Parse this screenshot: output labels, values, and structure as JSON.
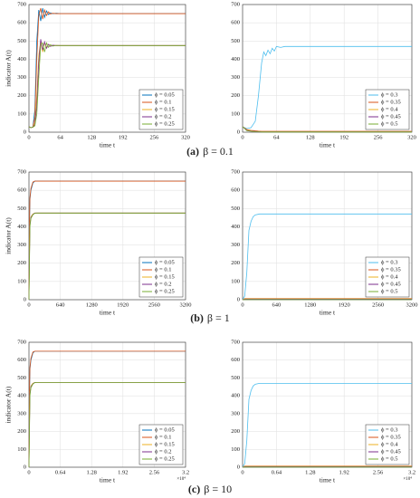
{
  "chart_data": [
    {
      "type": "line",
      "ylabel": "indicator A(t)",
      "xlabel": "time t",
      "x": [
        0,
        4,
        8,
        12,
        16,
        20,
        24,
        28,
        32,
        36,
        40,
        44,
        48,
        56,
        64,
        80,
        320
      ],
      "xlim": [
        0,
        320
      ],
      "xticks": [
        0,
        64,
        128,
        192,
        256,
        320
      ],
      "ylim": [
        0,
        700
      ],
      "yticks": [
        0,
        100,
        200,
        300,
        400,
        500,
        600,
        700
      ],
      "grid": true,
      "legend": "lower right",
      "series": [
        {
          "name": "ϕ = 0.05",
          "color": "#0072bd",
          "values": [
            30,
            25,
            30,
            120,
            500,
            670,
            610,
            680,
            630,
            665,
            645,
            655,
            650,
            652,
            650,
            650,
            650
          ]
        },
        {
          "name": "ϕ = 0.1",
          "color": "#d95319",
          "values": [
            30,
            25,
            28,
            80,
            400,
            640,
            680,
            620,
            670,
            640,
            660,
            648,
            652,
            650,
            650,
            650,
            650
          ]
        },
        {
          "name": "ϕ = 0.15",
          "color": "#edb120",
          "values": [
            30,
            25,
            28,
            50,
            200,
            420,
            500,
            440,
            490,
            465,
            480,
            472,
            476,
            475,
            475,
            475,
            475
          ]
        },
        {
          "name": "ϕ = 0.2",
          "color": "#7e2f8e",
          "values": [
            30,
            25,
            28,
            40,
            150,
            380,
            510,
            450,
            495,
            460,
            482,
            470,
            477,
            475,
            475,
            475,
            475
          ]
        },
        {
          "name": "ϕ = 0.25",
          "color": "#77ac30",
          "values": [
            30,
            25,
            28,
            35,
            100,
            300,
            480,
            490,
            440,
            490,
            465,
            480,
            472,
            476,
            475,
            475,
            475
          ]
        }
      ]
    },
    {
      "type": "line",
      "xlabel": "time t",
      "x": [
        0,
        8,
        16,
        24,
        30,
        36,
        40,
        44,
        48,
        52,
        56,
        60,
        64,
        72,
        80,
        96,
        320
      ],
      "xlim": [
        0,
        320
      ],
      "xticks": [
        0,
        64,
        128,
        192,
        256,
        320
      ],
      "ylim": [
        0,
        700
      ],
      "yticks": [
        0,
        100,
        200,
        300,
        400,
        500,
        600,
        700
      ],
      "grid": true,
      "legend": "lower right",
      "series": [
        {
          "name": "ϕ = 0.3",
          "color": "#4dbeee",
          "values": [
            30,
            20,
            25,
            60,
            200,
            380,
            440,
            420,
            450,
            430,
            460,
            445,
            470,
            465,
            470,
            470,
            470
          ]
        },
        {
          "name": "ϕ = 0.35",
          "color": "#d95319",
          "values": [
            30,
            15,
            10,
            8,
            6,
            5,
            5,
            5,
            5,
            5,
            5,
            5,
            5,
            5,
            5,
            5,
            5
          ]
        },
        {
          "name": "ϕ = 0.4",
          "color": "#edb120",
          "values": [
            30,
            12,
            8,
            5,
            4,
            3,
            3,
            3,
            3,
            3,
            3,
            3,
            3,
            3,
            3,
            3,
            3
          ]
        },
        {
          "name": "ϕ = 0.45",
          "color": "#7e2f8e",
          "values": [
            30,
            10,
            6,
            4,
            3,
            2,
            2,
            2,
            2,
            2,
            2,
            2,
            2,
            2,
            2,
            2,
            2
          ]
        },
        {
          "name": "ϕ = 0.5",
          "color": "#77ac30",
          "values": [
            30,
            8,
            5,
            3,
            2,
            1,
            1,
            1,
            1,
            1,
            1,
            1,
            1,
            1,
            1,
            1,
            1
          ]
        }
      ]
    },
    {
      "type": "line",
      "ylabel": "indicator A(t)",
      "xlabel": "time t",
      "x": [
        0,
        10,
        20,
        40,
        80,
        120,
        160,
        3200
      ],
      "xlim": [
        0,
        3200
      ],
      "xticks": [
        0,
        640,
        1280,
        1920,
        2560,
        3200
      ],
      "ylim": [
        0,
        700
      ],
      "yticks": [
        0,
        100,
        200,
        300,
        400,
        500,
        600,
        700
      ],
      "grid": true,
      "legend": "lower right",
      "series": [
        {
          "name": "ϕ = 0.05",
          "color": "#0072bd",
          "values": [
            0,
            400,
            550,
            600,
            640,
            650,
            650,
            650
          ]
        },
        {
          "name": "ϕ = 0.1",
          "color": "#d95319",
          "values": [
            0,
            420,
            560,
            610,
            645,
            650,
            650,
            650
          ]
        },
        {
          "name": "ϕ = 0.15",
          "color": "#edb120",
          "values": [
            0,
            250,
            420,
            455,
            470,
            475,
            475,
            475
          ]
        },
        {
          "name": "ϕ = 0.2",
          "color": "#7e2f8e",
          "values": [
            0,
            230,
            410,
            450,
            468,
            475,
            475,
            475
          ]
        },
        {
          "name": "ϕ = 0.25",
          "color": "#77ac30",
          "values": [
            0,
            200,
            400,
            445,
            466,
            474,
            475,
            475
          ]
        }
      ]
    },
    {
      "type": "line",
      "xlabel": "time t",
      "x": [
        0,
        40,
        80,
        120,
        160,
        200,
        240,
        320,
        3200
      ],
      "xlim": [
        0,
        3200
      ],
      "xticks": [
        0,
        640,
        1280,
        1920,
        2560,
        3200
      ],
      "ylim": [
        0,
        700
      ],
      "yticks": [
        0,
        100,
        200,
        300,
        400,
        500,
        600,
        700
      ],
      "grid": true,
      "legend": "lower right",
      "series": [
        {
          "name": "ϕ = 0.3",
          "color": "#4dbeee",
          "values": [
            0,
            20,
            150,
            380,
            430,
            455,
            465,
            470,
            470
          ]
        },
        {
          "name": "ϕ = 0.35",
          "color": "#d95319",
          "values": [
            0,
            6,
            6,
            6,
            6,
            6,
            6,
            6,
            6
          ]
        },
        {
          "name": "ϕ = 0.4",
          "color": "#edb120",
          "values": [
            0,
            4,
            4,
            4,
            4,
            4,
            4,
            4,
            4
          ]
        },
        {
          "name": "ϕ = 0.45",
          "color": "#7e2f8e",
          "values": [
            0,
            3,
            3,
            3,
            3,
            3,
            3,
            3,
            3
          ]
        },
        {
          "name": "ϕ = 0.5",
          "color": "#77ac30",
          "values": [
            0,
            1,
            1,
            1,
            1,
            1,
            1,
            1,
            1
          ]
        }
      ]
    },
    {
      "type": "line",
      "ylabel": "indicator A(t)",
      "xlabel": "time t",
      "x_multiplier": "×10⁴",
      "x": [
        0,
        100,
        200,
        400,
        800,
        1200,
        1600,
        32000
      ],
      "xlim": [
        0,
        32000
      ],
      "xticks": [
        0,
        {
          "value": 6400,
          "label": "0.64"
        },
        {
          "value": 12800,
          "label": "1.28"
        },
        {
          "value": 19200,
          "label": "1.92"
        },
        {
          "value": 25600,
          "label": "2.56"
        },
        {
          "value": 32000,
          "label": "3.2"
        }
      ],
      "ylim": [
        0,
        700
      ],
      "yticks": [
        0,
        100,
        200,
        300,
        400,
        500,
        600,
        700
      ],
      "grid": true,
      "legend": "lower right",
      "series": [
        {
          "name": "ϕ = 0.05",
          "color": "#0072bd",
          "values": [
            0,
            400,
            550,
            600,
            640,
            650,
            650,
            650
          ]
        },
        {
          "name": "ϕ = 0.1",
          "color": "#d95319",
          "values": [
            0,
            420,
            560,
            610,
            645,
            650,
            650,
            650
          ]
        },
        {
          "name": "ϕ = 0.15",
          "color": "#edb120",
          "values": [
            0,
            250,
            420,
            455,
            470,
            475,
            475,
            475
          ]
        },
        {
          "name": "ϕ = 0.2",
          "color": "#7e2f8e",
          "values": [
            0,
            230,
            410,
            450,
            468,
            475,
            475,
            475
          ]
        },
        {
          "name": "ϕ = 0.25",
          "color": "#77ac30",
          "values": [
            0,
            200,
            400,
            445,
            466,
            474,
            475,
            475
          ]
        }
      ]
    },
    {
      "type": "line",
      "xlabel": "time t",
      "x_multiplier": "×10⁴",
      "x": [
        0,
        400,
        800,
        1200,
        1600,
        2000,
        2400,
        3200,
        32000
      ],
      "xlim": [
        0,
        32000
      ],
      "xticks": [
        0,
        {
          "value": 6400,
          "label": "0.64"
        },
        {
          "value": 12800,
          "label": "1.28"
        },
        {
          "value": 19200,
          "label": "1.92"
        },
        {
          "value": 25600,
          "label": "2.56"
        },
        {
          "value": 32000,
          "label": "3.2"
        }
      ],
      "ylim": [
        0,
        700
      ],
      "yticks": [
        0,
        100,
        200,
        300,
        400,
        500,
        600,
        700
      ],
      "grid": true,
      "legend": "lower right",
      "series": [
        {
          "name": "ϕ = 0.3",
          "color": "#4dbeee",
          "values": [
            0,
            20,
            150,
            380,
            430,
            455,
            465,
            470,
            470
          ]
        },
        {
          "name": "ϕ = 0.35",
          "color": "#d95319",
          "values": [
            0,
            6,
            6,
            6,
            6,
            6,
            6,
            6,
            6
          ]
        },
        {
          "name": "ϕ = 0.4",
          "color": "#edb120",
          "values": [
            0,
            4,
            4,
            4,
            4,
            4,
            4,
            4,
            4
          ]
        },
        {
          "name": "ϕ = 0.45",
          "color": "#7e2f8e",
          "values": [
            0,
            3,
            3,
            3,
            3,
            3,
            3,
            3,
            3
          ]
        },
        {
          "name": "ϕ = 0.5",
          "color": "#77ac30",
          "values": [
            0,
            1,
            1,
            1,
            1,
            1,
            1,
            1,
            1
          ]
        }
      ]
    }
  ],
  "captions": [
    {
      "label": "(a)",
      "text": "β = 0.1"
    },
    {
      "label": "(b)",
      "text": "β = 1"
    },
    {
      "label": "(c)",
      "text": "β = 10"
    }
  ]
}
